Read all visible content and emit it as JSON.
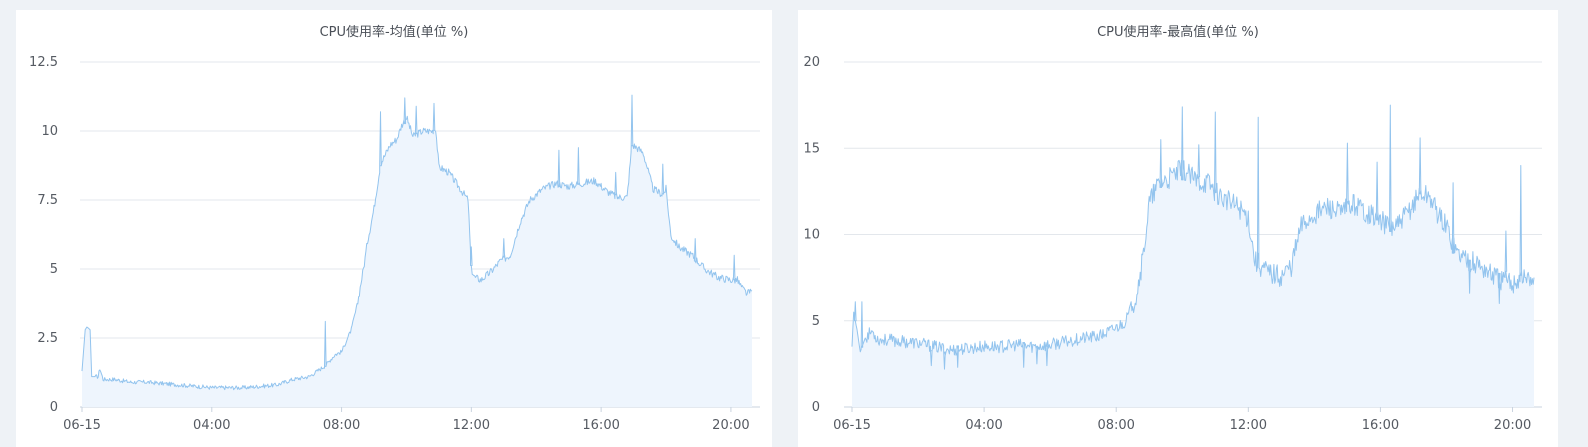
{
  "colors": {
    "page_background": "#eef2f6",
    "panel_background": "#ffffff",
    "line": "#93c4ee",
    "area_fill": "#eef5fd",
    "grid": "#e3e7ec",
    "axis": "#c9d3df",
    "text": "#555a62"
  },
  "charts": [
    {
      "title": "CPU使用率-均值(单位 %)"
    },
    {
      "title": "CPU使用率-最高值(单位 %)"
    }
  ],
  "chart_data": [
    {
      "type": "area",
      "title": "CPU使用率-均值(单位 %)",
      "xlabel": "",
      "ylabel": "",
      "x_ticks": [
        "06-15",
        "04:00",
        "08:00",
        "12:00",
        "16:00",
        "20:00"
      ],
      "y_ticks": [
        "0",
        "2.5",
        "5",
        "7.5",
        "10",
        "12.5"
      ],
      "ylim": [
        0,
        12.5
      ],
      "xlim_hours": [
        0,
        20.65
      ],
      "grid": true,
      "legend": "none",
      "series": [
        {
          "x_hours": [
            0,
            0.1,
            0.15,
            0.25,
            0.3,
            0.5,
            0.55,
            0.65,
            1.0,
            1.5,
            2.0,
            2.5,
            3.0,
            3.5,
            4.0,
            4.5,
            5.0,
            5.5,
            6.0,
            6.5,
            7.0,
            7.5,
            7.8,
            8.0,
            8.3,
            8.5,
            8.7,
            8.8,
            9.0,
            9.2,
            9.5,
            9.7,
            9.85,
            10.0,
            10.2,
            10.5,
            10.8,
            10.9,
            11.0,
            11.3,
            11.6,
            11.9,
            12.0,
            12.1,
            12.3,
            12.6,
            12.9,
            13.2,
            13.5,
            13.8,
            14.2,
            14.6,
            15.0,
            15.4,
            15.8,
            16.2,
            16.5,
            16.8,
            16.95,
            17.1,
            17.3,
            17.6,
            17.9,
            18.0,
            18.15,
            18.4,
            18.8,
            19.2,
            19.6,
            20.0,
            20.2,
            20.35,
            20.5,
            20.65
          ],
          "values": [
            1.3,
            2.8,
            2.9,
            2.8,
            1.1,
            1.1,
            1.4,
            1.0,
            1.0,
            0.9,
            0.9,
            0.85,
            0.8,
            0.75,
            0.7,
            0.7,
            0.7,
            0.75,
            0.8,
            1.0,
            1.1,
            1.5,
            1.9,
            2.0,
            2.8,
            3.8,
            5.2,
            6.0,
            7.2,
            8.8,
            9.5,
            9.7,
            10.2,
            10.5,
            9.8,
            10.0,
            10.0,
            10.1,
            8.7,
            8.5,
            8.0,
            7.5,
            5.0,
            4.7,
            4.6,
            4.9,
            5.3,
            5.5,
            6.7,
            7.5,
            7.9,
            8.1,
            8.0,
            8.1,
            8.2,
            7.8,
            7.6,
            7.6,
            9.5,
            9.4,
            9.2,
            7.9,
            7.7,
            7.9,
            6.2,
            5.8,
            5.5,
            5.0,
            4.7,
            4.6,
            4.6,
            4.3,
            4.1,
            4.2
          ]
        }
      ],
      "spikes": [
        {
          "x_hours": 7.5,
          "value": 3.1
        },
        {
          "x_hours": 9.2,
          "value": 10.7
        },
        {
          "x_hours": 9.95,
          "value": 11.2
        },
        {
          "x_hours": 10.3,
          "value": 10.9
        },
        {
          "x_hours": 10.85,
          "value": 11.0
        },
        {
          "x_hours": 12.0,
          "value": 5.8
        },
        {
          "x_hours": 13.0,
          "value": 6.1
        },
        {
          "x_hours": 14.7,
          "value": 9.3
        },
        {
          "x_hours": 15.3,
          "value": 9.4
        },
        {
          "x_hours": 16.45,
          "value": 8.5
        },
        {
          "x_hours": 16.95,
          "value": 11.3
        },
        {
          "x_hours": 17.9,
          "value": 8.8
        },
        {
          "x_hours": 18.9,
          "value": 6.1
        },
        {
          "x_hours": 20.1,
          "value": 5.5
        }
      ]
    },
    {
      "type": "area",
      "title": "CPU使用率-最高值(单位 %)",
      "xlabel": "",
      "ylabel": "",
      "x_ticks": [
        "06-15",
        "04:00",
        "08:00",
        "12:00",
        "16:00",
        "20:00"
      ],
      "y_ticks": [
        "0",
        "5",
        "10",
        "15",
        "20"
      ],
      "ylim": [
        0,
        20
      ],
      "xlim_hours": [
        0,
        20.65
      ],
      "grid": true,
      "legend": "none",
      "series": [
        {
          "x_hours": [
            0,
            0.05,
            0.15,
            0.25,
            0.4,
            0.6,
            0.8,
            1.0,
            1.5,
            2.0,
            2.5,
            3.0,
            3.5,
            4.0,
            4.5,
            5.0,
            5.5,
            6.0,
            6.5,
            7.0,
            7.5,
            7.8,
            8.0,
            8.3,
            8.6,
            8.8,
            9.0,
            9.3,
            9.6,
            10.0,
            10.4,
            10.8,
            11.0,
            11.3,
            11.7,
            12.0,
            12.2,
            12.6,
            13.0,
            13.3,
            13.6,
            14.0,
            14.4,
            14.8,
            15.2,
            15.6,
            16.0,
            16.3,
            16.6,
            16.9,
            17.2,
            17.5,
            17.8,
            18.0,
            18.3,
            18.7,
            19.0,
            19.3,
            19.6,
            20.0,
            20.3,
            20.5,
            20.65
          ],
          "values": [
            3.5,
            5.5,
            4.5,
            3.2,
            4.0,
            4.4,
            3.9,
            3.9,
            3.8,
            3.7,
            3.5,
            3.3,
            3.4,
            3.5,
            3.5,
            3.6,
            3.5,
            3.6,
            3.8,
            4.0,
            4.1,
            4.4,
            4.6,
            5.0,
            6.5,
            8.5,
            11.8,
            13.0,
            13.2,
            13.8,
            13.1,
            13.0,
            12.5,
            12.0,
            11.6,
            11.0,
            8.5,
            7.8,
            7.6,
            8.2,
            10.5,
            11.2,
            11.6,
            11.2,
            11.8,
            11.3,
            10.8,
            10.4,
            10.6,
            11.5,
            12.4,
            12.2,
            11.0,
            10.5,
            9.0,
            8.5,
            8.2,
            7.8,
            7.4,
            7.2,
            7.6,
            7.3,
            7.5
          ]
        }
      ],
      "spikes": [
        {
          "x_hours": 0.1,
          "value": 6.1
        },
        {
          "x_hours": 0.3,
          "value": 6.1
        },
        {
          "x_hours": 2.4,
          "value": 2.4,
          "dip": true
        },
        {
          "x_hours": 2.8,
          "value": 2.2,
          "dip": true
        },
        {
          "x_hours": 3.2,
          "value": 2.3,
          "dip": true
        },
        {
          "x_hours": 5.2,
          "value": 2.3,
          "dip": true
        },
        {
          "x_hours": 5.6,
          "value": 2.5,
          "dip": true
        },
        {
          "x_hours": 5.9,
          "value": 2.4,
          "dip": true
        },
        {
          "x_hours": 9.35,
          "value": 15.5
        },
        {
          "x_hours": 10.0,
          "value": 17.4
        },
        {
          "x_hours": 10.5,
          "value": 15.2
        },
        {
          "x_hours": 11.0,
          "value": 17.1
        },
        {
          "x_hours": 12.3,
          "value": 16.8
        },
        {
          "x_hours": 15.0,
          "value": 15.3
        },
        {
          "x_hours": 15.9,
          "value": 14.2
        },
        {
          "x_hours": 16.3,
          "value": 17.5
        },
        {
          "x_hours": 17.2,
          "value": 15.6
        },
        {
          "x_hours": 18.2,
          "value": 13.0
        },
        {
          "x_hours": 19.8,
          "value": 10.2
        },
        {
          "x_hours": 20.25,
          "value": 14.0
        },
        {
          "x_hours": 18.7,
          "value": 6.6,
          "dip": true
        },
        {
          "x_hours": 19.6,
          "value": 6.0,
          "dip": true
        }
      ]
    }
  ]
}
